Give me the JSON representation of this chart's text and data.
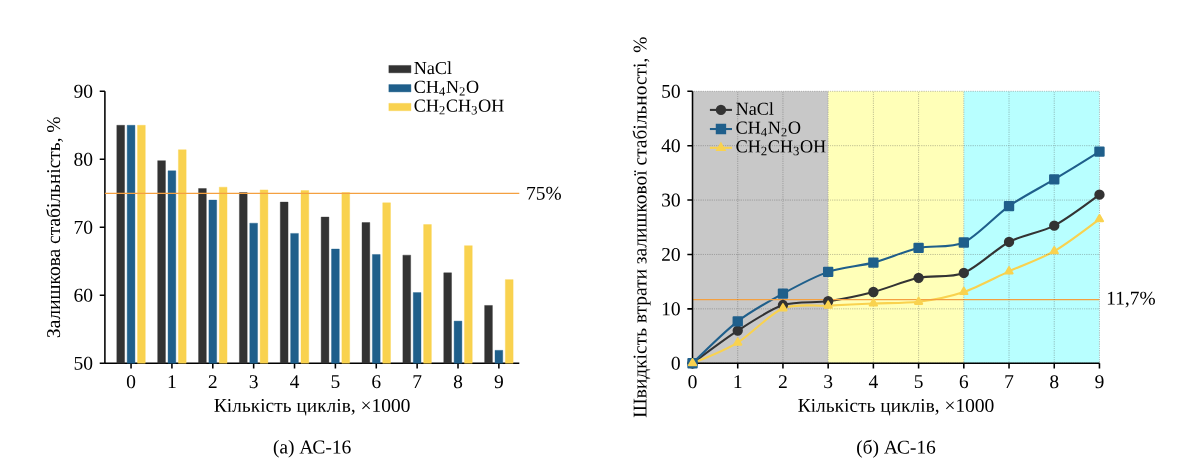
{
  "chart_data": [
    {
      "type": "bar",
      "categories": [
        "0",
        "1",
        "2",
        "3",
        "4",
        "5",
        "6",
        "7",
        "8",
        "9"
      ],
      "xlabel": "Кількість циклів, ×1000",
      "ylabel": "Залишкова стабільність, %",
      "ylim": [
        50,
        90
      ],
      "yticks": [
        50,
        60,
        70,
        80,
        90
      ],
      "legend": "top right",
      "series": [
        {
          "name": "NaCl",
          "color": "#333333",
          "values": [
            85,
            79.8,
            75.7,
            75.1,
            73.7,
            71.5,
            70.7,
            65.9,
            63.3,
            58.5
          ]
        },
        {
          "name": "CH$_{4}$N$_{2}$O",
          "color": "#1f5f8b",
          "values": [
            85,
            78.3,
            74.0,
            70.6,
            69.1,
            66.8,
            66.0,
            60.4,
            56.2,
            51.9
          ]
        },
        {
          "name": "CH$_{2}$CH$_{3}$OH",
          "color": "#f9d24f",
          "values": [
            85,
            81.4,
            75.9,
            75.5,
            75.4,
            75.1,
            73.6,
            70.4,
            67.3,
            62.3
          ]
        }
      ],
      "ref_lines": [
        {
          "axis": "y",
          "value": 75,
          "label": "75%",
          "color": "#f4a040"
        }
      ],
      "annotations": [
        "(а)  АС-16"
      ]
    },
    {
      "type": "line",
      "x": [
        0,
        1,
        2,
        3,
        4,
        5,
        6,
        7,
        8,
        9
      ],
      "xlim": [
        0,
        9
      ],
      "xticks": [
        0,
        1,
        2,
        3,
        4,
        5,
        6,
        7,
        8,
        9
      ],
      "xlabel": "Кількість циклів, ×1000",
      "ylabel": "Швидкість втрати залишкової стабільності, %",
      "ylim": [
        0,
        50
      ],
      "yticks": [
        0,
        10,
        20,
        30,
        40,
        50
      ],
      "grid": true,
      "legend": "top left",
      "series": [
        {
          "name": "NaCl",
          "color": "#333333",
          "marker": "circle",
          "values": [
            0,
            6.0,
            10.7,
            11.4,
            13.1,
            15.7,
            16.6,
            22.3,
            25.3,
            31.0
          ]
        },
        {
          "name": "CH$_{4}$N$_{2}$O",
          "color": "#1f5f8b",
          "marker": "square",
          "values": [
            0,
            7.7,
            12.8,
            16.8,
            18.5,
            21.2,
            22.2,
            28.9,
            33.8,
            38.9
          ]
        },
        {
          "name": "CH$_{2}$CH$_{3}$OH",
          "color": "#f9d24f",
          "marker": "triangle",
          "values": [
            0,
            3.8,
            10.1,
            10.6,
            11.0,
            11.3,
            13.1,
            16.9,
            20.6,
            26.5
          ]
        }
      ],
      "bands": [
        {
          "axis": "x",
          "from": 0,
          "to": 3,
          "color": "#c8c8c8"
        },
        {
          "axis": "x",
          "from": 3,
          "to": 6,
          "color": "#ffffb8"
        },
        {
          "axis": "x",
          "from": 6,
          "to": 9,
          "color": "#b8ffff"
        }
      ],
      "ref_lines": [
        {
          "axis": "y",
          "value": 11.7,
          "label": "11,7%",
          "color": "#f4a040"
        }
      ],
      "annotations": [
        "(б)  АС-16"
      ]
    }
  ]
}
